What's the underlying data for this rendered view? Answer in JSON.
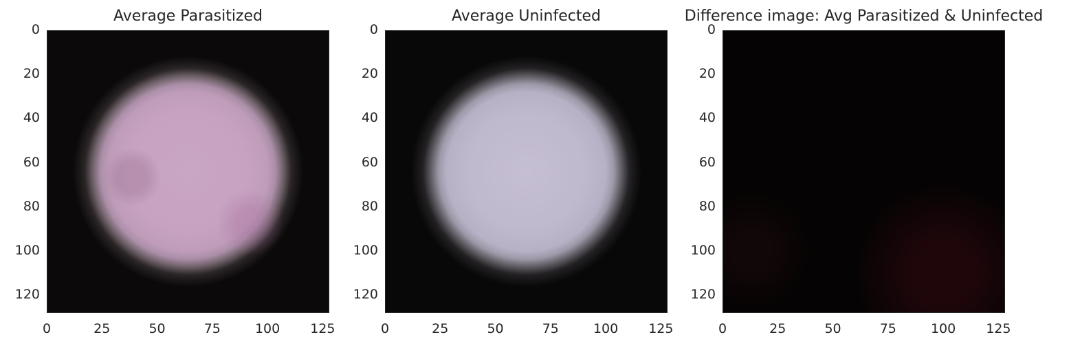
{
  "chart_data": [
    {
      "type": "heatmap",
      "title": "Average Parasitized",
      "xticks": [
        0,
        25,
        50,
        75,
        100,
        125
      ],
      "yticks": [
        0,
        20,
        40,
        60,
        80,
        100,
        120
      ],
      "xlim": [
        0,
        128
      ],
      "ylim": [
        128,
        0
      ],
      "image": "circular pinkish cell average, dark background",
      "colors": {
        "center": "#c9a6c3",
        "background": "#0b0909"
      }
    },
    {
      "type": "heatmap",
      "title": "Average Uninfected",
      "xticks": [
        0,
        25,
        50,
        75,
        100,
        125
      ],
      "yticks": [
        0,
        20,
        40,
        60,
        80,
        100,
        120
      ],
      "xlim": [
        0,
        128
      ],
      "ylim": [
        128,
        0
      ],
      "image": "circular light lavender cell average, dark background",
      "colors": {
        "center": "#c6bfd3",
        "background": "#080808"
      }
    },
    {
      "type": "heatmap",
      "title": "Difference image: Avg Parasitized & Uninfected",
      "xticks": [
        0,
        25,
        50,
        75,
        100,
        125
      ],
      "yticks": [
        0,
        20,
        40,
        60,
        80,
        100,
        120
      ],
      "xlim": [
        0,
        128
      ],
      "ylim": [
        128,
        0
      ],
      "image": "nearly black difference with faint dark red ring at lower right",
      "colors": {
        "center": "#050303",
        "ring": "#3c0a14"
      }
    }
  ]
}
